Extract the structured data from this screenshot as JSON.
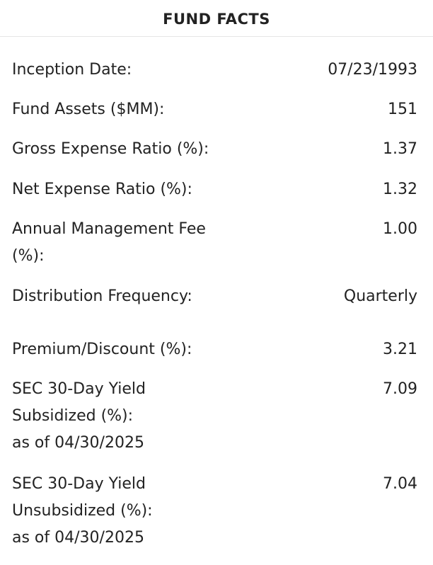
{
  "title": "FUND FACTS",
  "facts": [
    {
      "label_lines": [
        "Inception Date:"
      ],
      "value": "07/23/1993"
    },
    {
      "label_lines": [
        "Fund Assets ($MM):"
      ],
      "value": "151"
    },
    {
      "label_lines": [
        "Gross Expense Ratio (%):"
      ],
      "value": "1.37"
    },
    {
      "label_lines": [
        "Net Expense Ratio (%):"
      ],
      "value": "1.32"
    },
    {
      "label_lines": [
        "Annual Management Fee",
        "(%):"
      ],
      "value": "1.00"
    },
    {
      "label_lines": [
        "Distribution Frequency:"
      ],
      "value": "Quarterly"
    },
    {
      "label_lines": [
        "Premium/Discount (%):"
      ],
      "value": "3.21"
    },
    {
      "label_lines": [
        "SEC 30-Day Yield",
        "Subsidized (%):",
        "as of 04/30/2025"
      ],
      "value": "7.09"
    },
    {
      "label_lines": [
        "SEC 30-Day Yield",
        "Unsubsidized (%):",
        "as of 04/30/2025"
      ],
      "value": "7.04"
    }
  ]
}
